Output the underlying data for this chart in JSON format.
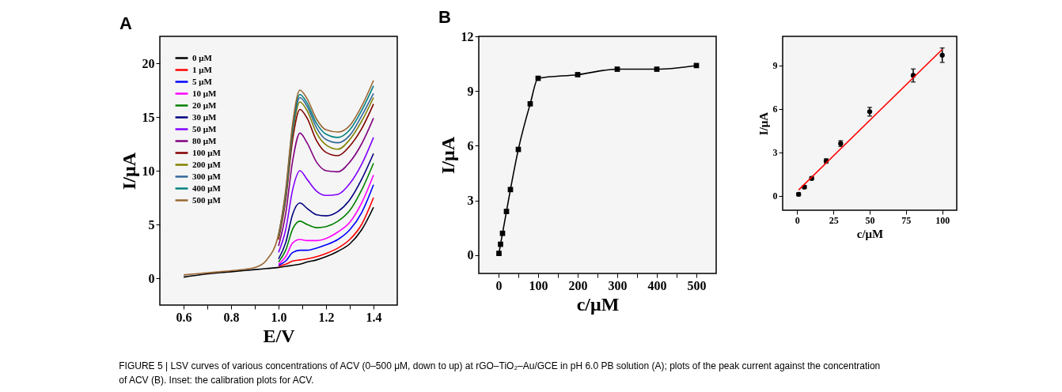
{
  "chart_data": [
    {
      "type": "line",
      "title": "A",
      "xlabel": "E/V",
      "ylabel": "I/μA",
      "legend": "top left",
      "grid": false,
      "line_style": "solid",
      "marker": "none",
      "annotations": [
        "FIGURE 5 | LSV curves of various concentrations of ACV (0–500 μM, down to up) at rGO–TiO₂–Au/GCE in pH 6.0 PB solution (A); plots of the peak current against the concentration of ACV (B). Inset: the calibration plots for ACV."
      ],
      "xlim": [
        0.5,
        1.5
      ],
      "ylim": [
        -2.5,
        22.5
      ],
      "xticks": [
        0.6,
        {
          "value": 0.7,
          "label": null
        },
        0.8,
        {
          "value": 0.9,
          "label": null
        },
        {
          "value": 1,
          "label": "1.0"
        },
        {
          "value": 1.1,
          "label": null
        },
        1.2,
        {
          "value": 1.3,
          "label": null
        },
        1.4
      ],
      "yticks": [
        0,
        5,
        10,
        15,
        20
      ],
      "x": [
        0.6,
        0.7,
        0.8,
        0.9,
        0.95,
        1.0,
        1.03,
        1.06,
        1.09,
        1.12,
        1.16,
        1.2,
        1.25,
        1.3,
        1.35,
        1.4
      ],
      "series": [
        {
          "name": "0 μM",
          "color": "#000000",
          "values": [
            0.1,
            0.4,
            0.6,
            0.8,
            0.9,
            1.0,
            1.1,
            1.2,
            1.3,
            1.5,
            1.7,
            2.0,
            2.5,
            3.2,
            4.5,
            6.6
          ]
        },
        {
          "name": "1 μM",
          "color": "#ff0000",
          "values": [
            null,
            null,
            null,
            null,
            null,
            1.1,
            1.3,
            1.6,
            1.7,
            1.8,
            2.0,
            2.3,
            2.8,
            3.6,
            5.0,
            7.5
          ]
        },
        {
          "name": "5 μM",
          "color": "#0000ff",
          "values": [
            null,
            null,
            null,
            null,
            null,
            1.2,
            1.6,
            2.4,
            2.6,
            2.6,
            2.8,
            3.1,
            3.6,
            4.5,
            6.1,
            8.7
          ]
        },
        {
          "name": "10 μM",
          "color": "#ff00ff",
          "values": [
            null,
            null,
            null,
            null,
            null,
            1.3,
            2.0,
            3.3,
            3.6,
            3.5,
            3.5,
            3.7,
            4.3,
            5.2,
            7.0,
            9.6
          ]
        },
        {
          "name": "20 μM",
          "color": "#008000",
          "values": [
            null,
            null,
            null,
            null,
            null,
            1.5,
            2.6,
            4.6,
            5.3,
            5.0,
            4.7,
            4.8,
            5.3,
            6.3,
            8.2,
            10.7
          ]
        },
        {
          "name": "30 μM",
          "color": "#000080",
          "values": [
            null,
            null,
            null,
            null,
            null,
            1.8,
            3.3,
            6.0,
            7.0,
            6.5,
            5.9,
            5.8,
            6.2,
            7.3,
            9.2,
            11.6
          ]
        },
        {
          "name": "50 μM",
          "color": "#8000ff",
          "values": [
            null,
            null,
            null,
            null,
            null,
            2.4,
            4.5,
            8.3,
            10.0,
            9.2,
            8.1,
            7.7,
            7.8,
            8.8,
            10.6,
            13.1
          ]
        },
        {
          "name": "80 μM",
          "color": "#800080",
          "values": [
            null,
            null,
            null,
            null,
            null,
            3.0,
            6.0,
            11.0,
            13.5,
            12.6,
            10.8,
            10.0,
            9.9,
            10.8,
            12.5,
            14.9
          ]
        },
        {
          "name": "100 μM",
          "color": "#800000",
          "values": [
            null,
            null,
            null,
            null,
            null,
            3.6,
            7.3,
            13.0,
            15.7,
            14.9,
            12.8,
            11.7,
            11.4,
            12.3,
            13.9,
            16.2
          ]
        },
        {
          "name": "200 μM",
          "color": "#808000",
          "values": [
            null,
            null,
            null,
            null,
            null,
            3.8,
            7.6,
            13.6,
            16.4,
            15.6,
            13.5,
            12.4,
            12.0,
            12.9,
            14.6,
            16.8
          ]
        },
        {
          "name": "300 μM",
          "color": "#336699",
          "values": [
            null,
            null,
            null,
            null,
            null,
            3.9,
            7.8,
            13.9,
            16.8,
            16.0,
            14.0,
            12.9,
            12.6,
            13.3,
            15.1,
            17.2
          ]
        },
        {
          "name": "400 μM",
          "color": "#008080",
          "values": [
            null,
            null,
            null,
            null,
            null,
            4.0,
            8.0,
            14.2,
            17.1,
            16.3,
            14.4,
            13.4,
            13.1,
            13.8,
            15.6,
            17.9
          ]
        },
        {
          "name": "500 μM",
          "color": "#996633",
          "values": [
            0.3,
            0.5,
            0.7,
            1.0,
            1.7,
            4.1,
            8.2,
            14.5,
            17.5,
            16.7,
            14.8,
            13.8,
            13.6,
            14.2,
            16.0,
            18.4
          ]
        }
      ]
    },
    {
      "type": "line",
      "title": "B",
      "xlabel": "c/μM",
      "ylabel": "I/μA",
      "grid": false,
      "marker": "square",
      "line_style": "solid",
      "xlim": [
        -50,
        550
      ],
      "ylim": [
        -1,
        12
      ],
      "xticks": [
        0,
        {
          "value": 50,
          "label": null
        },
        100,
        {
          "value": 150,
          "label": null
        },
        200,
        {
          "value": 250,
          "label": null
        },
        300,
        {
          "value": 350,
          "label": null
        },
        400,
        {
          "value": 450,
          "label": null
        },
        500
      ],
      "yticks": [
        0,
        3,
        6,
        9,
        12
      ],
      "x": [
        1,
        5,
        10,
        20,
        30,
        50,
        80,
        100,
        200,
        300,
        400,
        500
      ],
      "series": [
        {
          "color": "#000000",
          "values": [
            0.1,
            0.6,
            1.2,
            2.4,
            3.6,
            5.8,
            8.3,
            9.7,
            9.9,
            10.2,
            10.2,
            10.4
          ]
        }
      ]
    },
    {
      "type": "scatter",
      "xlabel": "c/μM",
      "ylabel": "I/μA",
      "grid": false,
      "marker": "circle",
      "xlim": [
        -10,
        110
      ],
      "ylim": [
        -1,
        11
      ],
      "xticks": [
        0,
        25,
        50,
        75,
        100
      ],
      "yticks": [
        0,
        3,
        6,
        9
      ],
      "x": [
        1,
        5,
        10,
        20,
        30,
        50,
        80,
        100
      ],
      "series": [
        {
          "color": "#000000",
          "values": [
            0.1,
            0.6,
            1.2,
            2.4,
            3.6,
            5.8,
            8.3,
            9.7
          ],
          "errors": [
            0.1,
            0.1,
            0.1,
            0.15,
            0.2,
            0.3,
            0.45,
            0.5
          ]
        },
        {
          "type": "line",
          "marker": "none",
          "color": "#ff0000",
          "x": [
            1,
            100
          ],
          "values": [
            0.4,
            10.1
          ]
        }
      ]
    }
  ]
}
